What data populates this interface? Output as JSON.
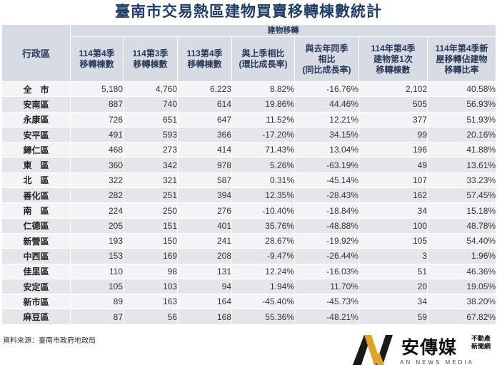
{
  "title": "臺南市交易熱區建物買賣移轉棟數統計",
  "group_header": "建物移轉",
  "headers": [
    "行政區",
    "114第4季\n移轉棟數",
    "114第3季\n移轉棟數",
    "113第4季\n移轉棟數",
    "與上季相比\n(環比成長率)",
    "與去年同季\n相比\n(同比成長率)",
    "114年第4季\n建物第1次\n移轉棟數",
    "114年第4季新\n屋移轉佔建物\n移轉比率"
  ],
  "rows": [
    [
      "全　市",
      "5,180",
      "4,760",
      "6,223",
      "8.82%",
      "-16.76%",
      "2,102",
      "40.58%"
    ],
    [
      "安南區",
      "887",
      "740",
      "614",
      "19.86%",
      "44.46%",
      "505",
      "56.93%"
    ],
    [
      "永康區",
      "726",
      "651",
      "647",
      "11.52%",
      "12.21%",
      "377",
      "51.93%"
    ],
    [
      "安平區",
      "491",
      "593",
      "366",
      "-17.20%",
      "34.15%",
      "99",
      "20.16%"
    ],
    [
      "歸仁區",
      "468",
      "273",
      "414",
      "71.43%",
      "13.04%",
      "196",
      "41.88%"
    ],
    [
      "東　區",
      "360",
      "342",
      "978",
      "5.26%",
      "-63.19%",
      "49",
      "13.61%"
    ],
    [
      "北　區",
      "322",
      "321",
      "587",
      "0.31%",
      "-45.14%",
      "107",
      "33.23%"
    ],
    [
      "善化區",
      "282",
      "251",
      "394",
      "12.35%",
      "-28.43%",
      "162",
      "57.45%"
    ],
    [
      "南　區",
      "224",
      "250",
      "276",
      "-10.40%",
      "-18.84%",
      "34",
      "15.18%"
    ],
    [
      "仁德區",
      "205",
      "151",
      "401",
      "35.76%",
      "-48.88%",
      "100",
      "48.78%"
    ],
    [
      "新營區",
      "193",
      "150",
      "241",
      "28.67%",
      "-19.92%",
      "105",
      "54.40%"
    ],
    [
      "中西區",
      "153",
      "169",
      "208",
      "-9.47%",
      "-26.44%",
      "3",
      "1.96%"
    ],
    [
      "佳里區",
      "110",
      "98",
      "131",
      "12.24%",
      "-16.03%",
      "51",
      "46.36%"
    ],
    [
      "安定區",
      "105",
      "103",
      "94",
      "1.94%",
      "11.70%",
      "20",
      "19.05%"
    ],
    [
      "新市區",
      "89",
      "163",
      "164",
      "-45.40%",
      "-45.73%",
      "34",
      "38.20%"
    ],
    [
      "麻豆區",
      "87",
      "56",
      "168",
      "55.36%",
      "-48.21%",
      "59",
      "67.82%"
    ]
  ],
  "source": "資料來源：臺南市政府地政局",
  "logo": {
    "name": "安傳媒",
    "tag": "不動產\n新聞網",
    "sub": "AN NEWS MEDIA",
    "icon": "an-news-logo-icon",
    "colors": {
      "gold": "#e0a323",
      "dark": "#1a1a1a"
    }
  }
}
